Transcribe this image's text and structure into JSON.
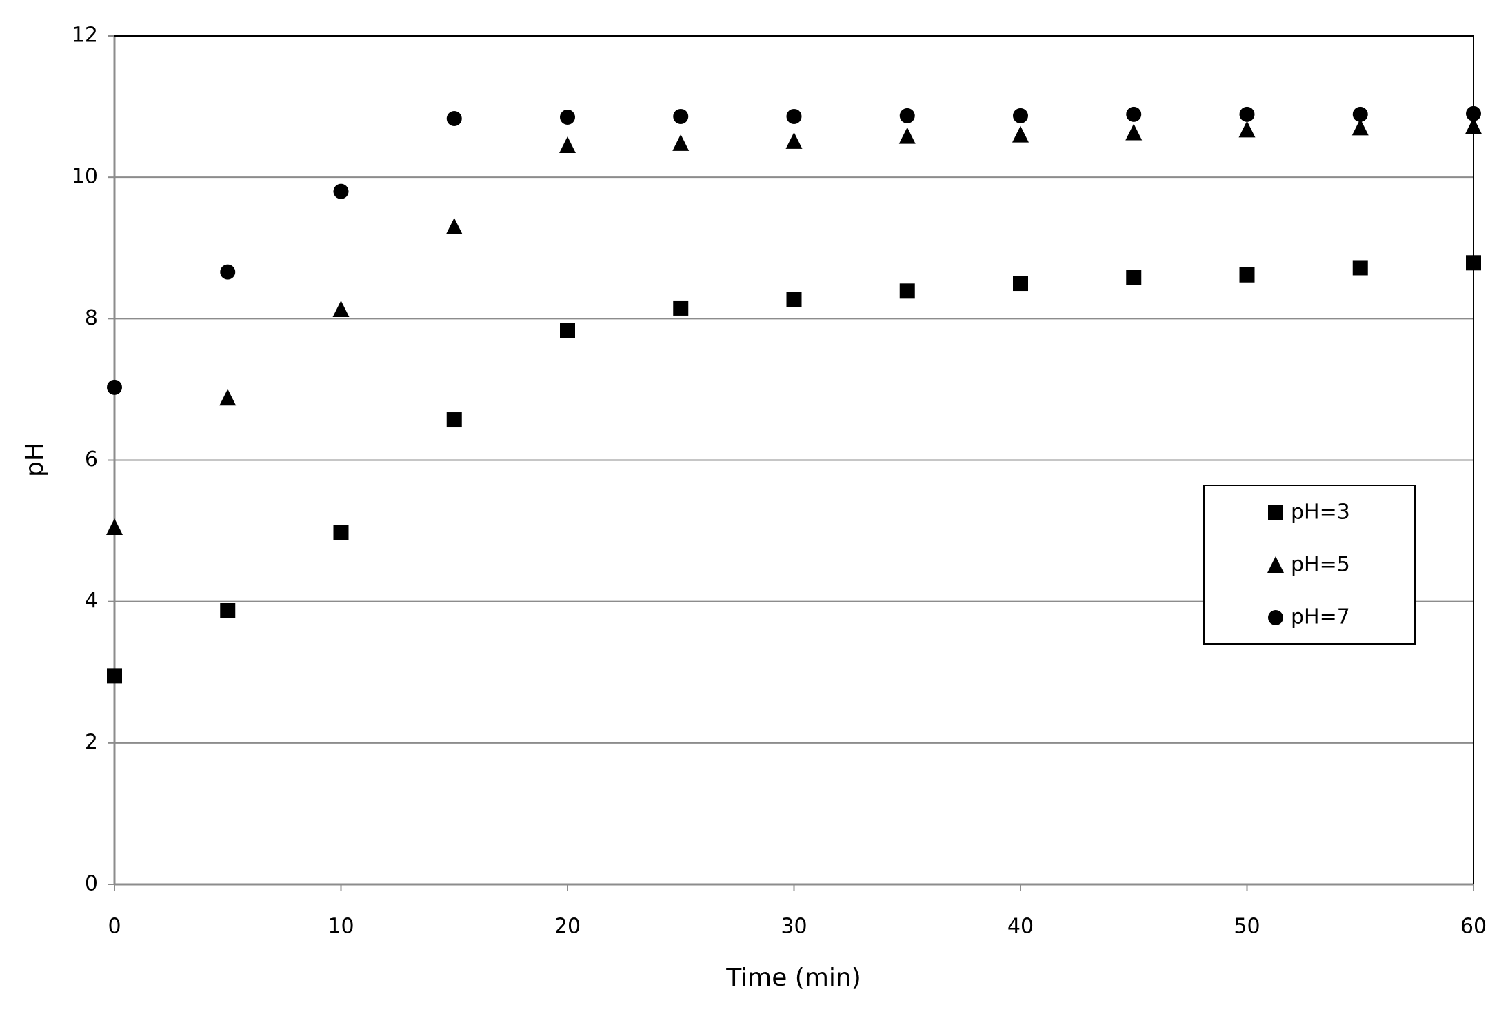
{
  "chart_data": {
    "type": "scatter",
    "x_label": "Time (min)",
    "y_label": "pH",
    "x": [
      0,
      5,
      10,
      15,
      20,
      25,
      30,
      35,
      40,
      45,
      50,
      55,
      60
    ],
    "series": [
      {
        "name": "pH=3",
        "color": "#000000",
        "marker": "square",
        "values": [
          2.95,
          3.87,
          4.98,
          6.57,
          7.83,
          8.15,
          8.27,
          8.39,
          8.5,
          8.58,
          8.62,
          8.72,
          8.79
        ]
      },
      {
        "name": "pH=5",
        "color": "#000000",
        "marker": "triangle",
        "values": [
          5.05,
          6.88,
          8.13,
          9.3,
          10.45,
          10.48,
          10.51,
          10.58,
          10.6,
          10.63,
          10.67,
          10.7,
          10.72
        ]
      },
      {
        "name": "pH=7",
        "color": "#000000",
        "marker": "circle",
        "values": [
          7.03,
          8.66,
          9.8,
          10.83,
          10.85,
          10.86,
          10.86,
          10.87,
          10.87,
          10.89,
          10.89,
          10.89,
          10.9
        ]
      }
    ],
    "xlim": [
      0,
      60
    ],
    "xticks": [
      0,
      10,
      20,
      30,
      40,
      50,
      60
    ],
    "ylim": [
      0,
      12
    ],
    "yticks": [
      0,
      2,
      4,
      6,
      8,
      10,
      12
    ],
    "grid": true,
    "legend": "right"
  }
}
